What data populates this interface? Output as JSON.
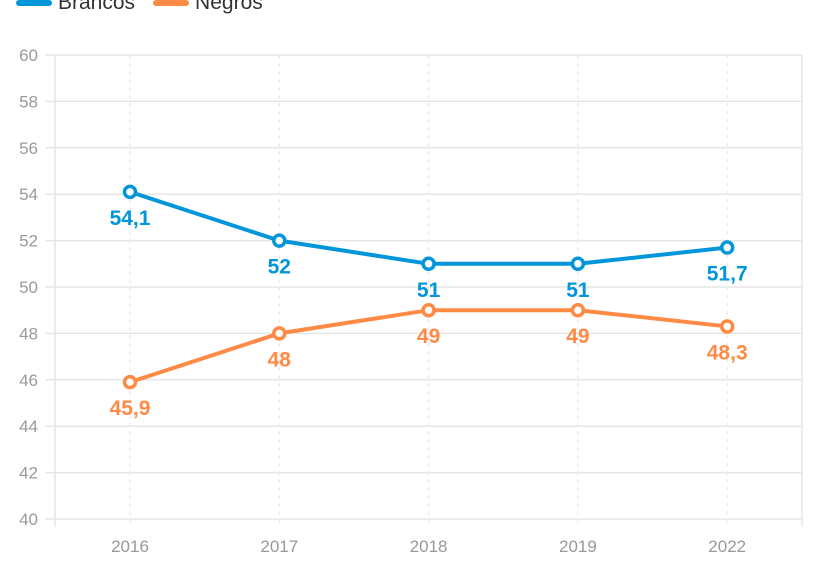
{
  "chart_data": {
    "type": "line",
    "categories": [
      "2016",
      "2017",
      "2018",
      "2019",
      "2022"
    ],
    "series": [
      {
        "name": "Brancos",
        "color": "#0096d9",
        "values": [
          54.1,
          52,
          51,
          51,
          51.7
        ],
        "labels": [
          "54,1",
          "52",
          "51",
          "51",
          "51,7"
        ]
      },
      {
        "name": "Negros",
        "color": "#ff8a45",
        "values": [
          45.9,
          48,
          49,
          49,
          48.3
        ],
        "labels": [
          "45,9",
          "48",
          "49",
          "49",
          "48,3"
        ]
      }
    ],
    "ylim": [
      40,
      60
    ],
    "yticks": [
      "40",
      "42",
      "44",
      "46",
      "48",
      "50",
      "52",
      "54",
      "56",
      "58",
      "60"
    ],
    "grid": true,
    "legend": "top-left",
    "title": "",
    "xlabel": "",
    "ylabel": ""
  }
}
